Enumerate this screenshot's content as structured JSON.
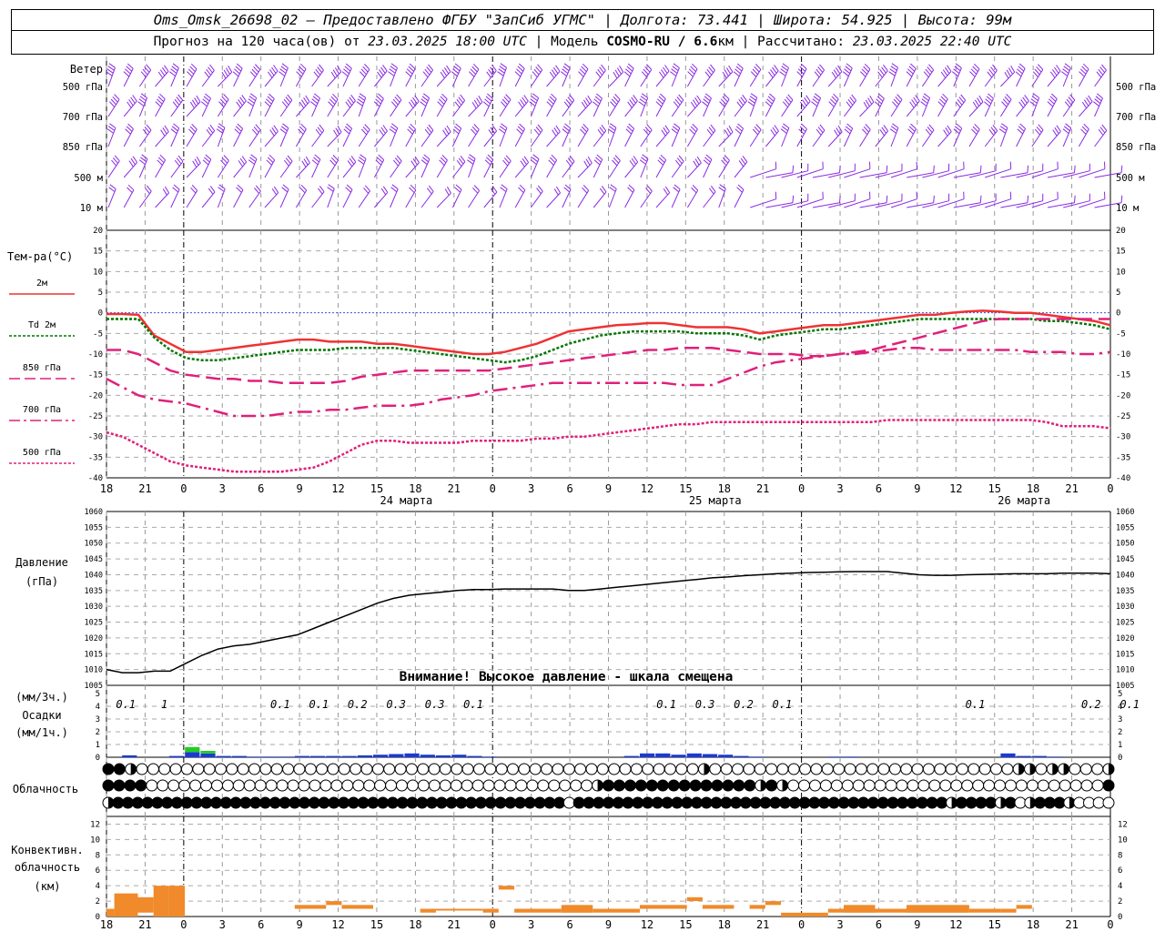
{
  "header": {
    "line1_station": "Oms_Omsk_26698_02",
    "line1_rest": " – Предоставлено ФГБУ \"ЗапСиб УГМС\" | Долгота: 73.441 | Широта: 54.925 | Высота: 99м",
    "line2_a": "Прогноз на 120 часа(ов) от ",
    "line2_date": "23.03.2025 18:00 UTC",
    "line2_b": "  | Модель ",
    "line2_model": "COSMO-RU / 6.6",
    "line2_c": "км | Рассчитано: ",
    "line2_calc": "23.03.2025 22:40 UTC"
  },
  "labels": {
    "wind_title": "Ветер",
    "temp_title": "Тем-ра(°С)",
    "pressure_title": "Давление",
    "pressure_unit": "(гПа)",
    "precip_unit3": "(мм/3ч.)",
    "precip_title": "Осадки",
    "precip_unit1": "(мм/1ч.)",
    "cloud_title": "Облачность",
    "conv_title1": "Конвективн.",
    "conv_title2": "облачность",
    "conv_unit": "(км)",
    "warning": "Внимание! Высокое давление - шкала смещена"
  },
  "colors": {
    "t2m": "#ee3333",
    "td2m": "#007700",
    "t850": "#e0207a",
    "t700": "#e0207a",
    "t500": "#e0207a",
    "wind": "#8a2be2",
    "precip": "#1a3ad6",
    "precip_light": "#22cc22",
    "conv": "#f08a2a",
    "zero_line": "#3355dd"
  },
  "chart_data": [
    {
      "type": "wind_barbs",
      "levels": [
        "500 гПа",
        "700 гПа",
        "850 гПа",
        "500 м",
        "10  м"
      ]
    },
    {
      "type": "line",
      "ylim": [
        -40,
        20
      ],
      "yticks": [
        20,
        15,
        10,
        5,
        0,
        -5,
        -10,
        -15,
        -20,
        -25,
        -30,
        -35,
        -40
      ],
      "x_tick_labels": [
        "18",
        "21",
        "0",
        "3",
        "6",
        "9",
        "12",
        "15",
        "18",
        "21",
        "0",
        "3",
        "6",
        "9",
        "12",
        "15",
        "18",
        "21",
        "0",
        "3",
        "6",
        "9",
        "12",
        "15",
        "18",
        "21",
        "0"
      ],
      "date_labels": [
        "24 марта",
        "25 марта",
        "26 марта"
      ],
      "series": [
        {
          "name": "2м",
          "values": [
            -0.3,
            -0.3,
            -0.5,
            -5.5,
            -7.5,
            -9.5,
            -9.5,
            -9,
            -8.5,
            -8,
            -7.5,
            -7,
            -6.5,
            -6.5,
            -7,
            -7,
            -7,
            -7.5,
            -7.5,
            -8,
            -8.5,
            -9,
            -9.5,
            -10,
            -10,
            -9.5,
            -8.5,
            -7.5,
            -6,
            -4.5,
            -4,
            -3.5,
            -3,
            -2.8,
            -2.5,
            -2.5,
            -3,
            -3.5,
            -3.5,
            -3.5,
            -4,
            -5,
            -4.5,
            -4,
            -3.5,
            -3,
            -3,
            -2.5,
            -2,
            -1.5,
            -1,
            -0.5,
            -0.5,
            0,
            0.3,
            0.5,
            0.3,
            0,
            0,
            -0.5,
            -1,
            -1.5,
            -2,
            -3
          ]
        },
        {
          "name": "Td  2м",
          "values": [
            -1.5,
            -1.5,
            -1.5,
            -6,
            -9,
            -11,
            -11.5,
            -11.5,
            -11,
            -10.5,
            -10,
            -9.5,
            -9,
            -9,
            -9,
            -8.5,
            -8.5,
            -8.5,
            -8.5,
            -9,
            -9.5,
            -10,
            -10.5,
            -11,
            -11.5,
            -12,
            -11.5,
            -10.5,
            -9,
            -7.5,
            -6.5,
            -5.5,
            -5,
            -4.5,
            -4.5,
            -4.5,
            -4.5,
            -5,
            -5,
            -5,
            -5.5,
            -6.5,
            -5.5,
            -5,
            -4.5,
            -4,
            -4,
            -3.5,
            -3,
            -2.5,
            -2,
            -1.5,
            -1.5,
            -1.5,
            -1.5,
            -1.5,
            -1.5,
            -1.5,
            -1.5,
            -2,
            -2,
            -2.5,
            -3,
            -4
          ]
        },
        {
          "name": "850 гПа",
          "values": [
            -9,
            -9,
            -10,
            -12,
            -14,
            -15,
            -15.5,
            -16,
            -16,
            -16.5,
            -16.5,
            -17,
            -17,
            -17,
            -17,
            -16.5,
            -15.5,
            -15,
            -14.5,
            -14,
            -14,
            -14,
            -14,
            -14,
            -14,
            -13.5,
            -13,
            -12.5,
            -12,
            -11.5,
            -11,
            -10.5,
            -10,
            -9.5,
            -9,
            -9,
            -8.5,
            -8.5,
            -8.5,
            -9,
            -9.5,
            -10,
            -10,
            -10,
            -10.5,
            -10.5,
            -10,
            -9.5,
            -9,
            -8,
            -7,
            -6,
            -5,
            -4,
            -3,
            -2,
            -1.5,
            -1.5,
            -1.5,
            -1.5,
            -1.5,
            -1.5,
            -1.5,
            -1.5
          ]
        },
        {
          "name": "700 гПа",
          "values": [
            -16,
            -18,
            -20,
            -21,
            -21.5,
            -22,
            -23,
            -24,
            -25,
            -25,
            -25,
            -24.5,
            -24,
            -24,
            -23.5,
            -23.5,
            -23,
            -22.5,
            -22.5,
            -22.5,
            -22,
            -21,
            -20.5,
            -20,
            -19,
            -18.5,
            -18,
            -17.5,
            -17,
            -17,
            -17,
            -17,
            -17,
            -17,
            -17,
            -17,
            -17.5,
            -17.5,
            -17.5,
            -16,
            -14.5,
            -13,
            -12,
            -11.5,
            -11,
            -10.5,
            -10,
            -10,
            -9.5,
            -9,
            -8.5,
            -8.5,
            -9,
            -9,
            -9,
            -9,
            -9,
            -9,
            -9.5,
            -9.5,
            -9.5,
            -10,
            -10,
            -9.5
          ]
        },
        {
          "name": "500 гПа",
          "values": [
            -29,
            -30,
            -32,
            -34,
            -36,
            -37,
            -37.5,
            -38,
            -38.5,
            -38.5,
            -38.5,
            -38.5,
            -38,
            -37.5,
            -36,
            -34,
            -32,
            -31,
            -31,
            -31.5,
            -31.5,
            -31.5,
            -31.5,
            -31,
            -31,
            -31,
            -31,
            -30.5,
            -30.5,
            -30,
            -30,
            -29.5,
            -29,
            -28.5,
            -28,
            -27.5,
            -27,
            -27,
            -26.5,
            -26.5,
            -26.5,
            -26.5,
            -26.5,
            -26.5,
            -26.5,
            -26.5,
            -26.5,
            -26.5,
            -26.5,
            -26,
            -26,
            -26,
            -26,
            -26,
            -26,
            -26,
            -26,
            -26,
            -26,
            -26.5,
            -27.5,
            -27.5,
            -27.5,
            -28
          ]
        }
      ]
    },
    {
      "type": "line",
      "ylim": [
        1005,
        1060
      ],
      "yticks": [
        1060,
        1055,
        1050,
        1045,
        1040,
        1035,
        1030,
        1025,
        1020,
        1015,
        1010,
        1005
      ],
      "series": [
        {
          "name": "Давление",
          "values": [
            1010,
            1009,
            1009,
            1009.5,
            1009.5,
            1012,
            1014.5,
            1016.5,
            1017.5,
            1018,
            1019,
            1020,
            1021,
            1023,
            1025,
            1027,
            1029,
            1031,
            1032.5,
            1033.5,
            1034,
            1034.5,
            1035,
            1035.3,
            1035.3,
            1035.5,
            1035.5,
            1035.5,
            1035.5,
            1035,
            1035,
            1035.5,
            1036,
            1036.5,
            1037,
            1037.5,
            1038,
            1038.5,
            1039,
            1039.3,
            1039.7,
            1040,
            1040.3,
            1040.5,
            1040.7,
            1040.8,
            1040.9,
            1041,
            1041,
            1041,
            1040.5,
            1040,
            1039.8,
            1039.8,
            1040,
            1040.1,
            1040.2,
            1040.3,
            1040.3,
            1040.3,
            1040.5,
            1040.5,
            1040.5,
            1040.3
          ]
        }
      ]
    },
    {
      "type": "bar",
      "ylim": [
        0,
        5
      ],
      "yticks": [
        5,
        4,
        3,
        2,
        1,
        0
      ],
      "labels_3h": [
        {
          "x": 0.5,
          "text": "0.1"
        },
        {
          "x": 1.5,
          "text": "1"
        },
        {
          "x": 4.5,
          "text": "0.1"
        },
        {
          "x": 5.5,
          "text": "0.1"
        },
        {
          "x": 6.5,
          "text": "0.2"
        },
        {
          "x": 7.5,
          "text": "0.3"
        },
        {
          "x": 8.5,
          "text": "0.3"
        },
        {
          "x": 9.5,
          "text": "0.1"
        },
        {
          "x": 14.5,
          "text": "0.1"
        },
        {
          "x": 15.5,
          "text": "0.3"
        },
        {
          "x": 16.5,
          "text": "0.2"
        },
        {
          "x": 17.5,
          "text": "0.1"
        },
        {
          "x": 22.5,
          "text": "0.1"
        },
        {
          "x": 25.5,
          "text": "0.2"
        },
        {
          "x": 26.5,
          "text": "0.1"
        }
      ],
      "hourly": [
        0,
        0.15,
        0,
        0,
        0.1,
        0.4,
        0.3,
        0.1,
        0.1,
        0.05,
        0.05,
        0.05,
        0.1,
        0.1,
        0.1,
        0.1,
        0.15,
        0.2,
        0.25,
        0.3,
        0.2,
        0.15,
        0.2,
        0.1,
        0.05,
        0,
        0,
        0,
        0,
        0,
        0,
        0,
        0,
        0.1,
        0.3,
        0.3,
        0.2,
        0.3,
        0.25,
        0.2,
        0.1,
        0.05,
        0,
        0,
        0,
        0,
        0.05,
        0.05,
        0,
        0,
        0,
        0,
        0,
        0,
        0,
        0,
        0,
        0.3,
        0.1,
        0.1,
        0.05,
        0,
        0,
        0
      ],
      "hourly_light": [
        0,
        0,
        0,
        0,
        0,
        0.4,
        0.2,
        0,
        0,
        0,
        0,
        0,
        0,
        0,
        0,
        0,
        0,
        0,
        0,
        0,
        0,
        0,
        0,
        0,
        0,
        0,
        0,
        0,
        0,
        0,
        0,
        0,
        0,
        0,
        0,
        0,
        0,
        0,
        0,
        0,
        0,
        0,
        0,
        0,
        0,
        0,
        0,
        0,
        0,
        0,
        0,
        0,
        0,
        0,
        0,
        0,
        0,
        0,
        0,
        0,
        0,
        0,
        0,
        0
      ]
    },
    {
      "type": "table",
      "name": "Облачность",
      "rows": [
        "FFHOOOOOOOOOOOOOOOOOOOOOOOOOOOOOOOOOOOOOOOOOOOOOOOOOOHOOOOOOOOOOOOOOOOOOOOOOOOOOOHHOHHOOOH",
        "FFFFOOOOOOOOOOOOOOOOOOOOOOOOOOOOOOOOOOOOOOOOOHFFFFFFFFFFFFFFHFHOOOOOOOOOOOOOOOOOOOOOOOOOOOOOF",
        "HFFFFFFFFFFFFFFFFFFFFFFFFFFFFFFFFFFFFFFFFFFFFFFOFFFFFFFFFFFFFFFFFFFFFFFFFFFFFFFFFFFFFFHFFFFHFOHFFFHOOOO"
      ]
    },
    {
      "type": "bar",
      "name": "Конвективн. облачность",
      "ylim": [
        0,
        13
      ],
      "yticks": [
        12,
        10,
        8,
        6,
        4,
        2,
        0
      ],
      "segments": [
        {
          "x0": 0,
          "x1": 0.5,
          "top": 1,
          "bot": 0
        },
        {
          "x0": 0.5,
          "x1": 2,
          "top": 3,
          "bot": 0
        },
        {
          "x0": 2,
          "x1": 3,
          "top": 2.5,
          "bot": 0.5
        },
        {
          "x0": 3,
          "x1": 4,
          "top": 4,
          "bot": 0
        },
        {
          "x0": 4,
          "x1": 5,
          "top": 4,
          "bot": 0
        },
        {
          "x0": 12,
          "x1": 14,
          "top": 1.5,
          "bot": 1
        },
        {
          "x0": 14,
          "x1": 15,
          "top": 2,
          "bot": 1.5
        },
        {
          "x0": 15,
          "x1": 17,
          "top": 1.5,
          "bot": 1
        },
        {
          "x0": 20,
          "x1": 21,
          "top": 1,
          "bot": 0.5
        },
        {
          "x0": 21,
          "x1": 24,
          "top": 1,
          "bot": 0.8
        },
        {
          "x0": 24,
          "x1": 25,
          "top": 1,
          "bot": 0.5
        },
        {
          "x0": 25,
          "x1": 26,
          "top": 4,
          "bot": 3.5
        },
        {
          "x0": 26,
          "x1": 29,
          "top": 1,
          "bot": 0.5
        },
        {
          "x0": 29,
          "x1": 31,
          "top": 1.5,
          "bot": 0.5
        },
        {
          "x0": 31,
          "x1": 34,
          "top": 1,
          "bot": 0.5
        },
        {
          "x0": 34,
          "x1": 37,
          "top": 1.5,
          "bot": 1
        },
        {
          "x0": 37,
          "x1": 38,
          "top": 2.5,
          "bot": 2
        },
        {
          "x0": 38,
          "x1": 40,
          "top": 1.5,
          "bot": 1
        },
        {
          "x0": 41,
          "x1": 42,
          "top": 1.5,
          "bot": 1
        },
        {
          "x0": 42,
          "x1": 43,
          "top": 2,
          "bot": 1.5
        },
        {
          "x0": 43,
          "x1": 46,
          "top": 0.5,
          "bot": 0
        },
        {
          "x0": 46,
          "x1": 47,
          "top": 1,
          "bot": 0.5
        },
        {
          "x0": 47,
          "x1": 49,
          "top": 1.5,
          "bot": 0.5
        },
        {
          "x0": 49,
          "x1": 51,
          "top": 1,
          "bot": 0.5
        },
        {
          "x0": 51,
          "x1": 55,
          "top": 1.5,
          "bot": 0.5
        },
        {
          "x0": 55,
          "x1": 57,
          "top": 1,
          "bot": 0.5
        },
        {
          "x0": 57,
          "x1": 58,
          "top": 1,
          "bot": 0.5
        },
        {
          "x0": 58,
          "x1": 59,
          "top": 1.5,
          "bot": 1
        }
      ],
      "x_tick_labels": [
        "18",
        "21",
        "0",
        "3",
        "6",
        "9",
        "12",
        "15",
        "18",
        "21",
        "0",
        "3",
        "6",
        "9",
        "12",
        "15",
        "18",
        "21",
        "0",
        "3",
        "6",
        "9",
        "12",
        "15",
        "18",
        "21",
        "0"
      ]
    }
  ]
}
